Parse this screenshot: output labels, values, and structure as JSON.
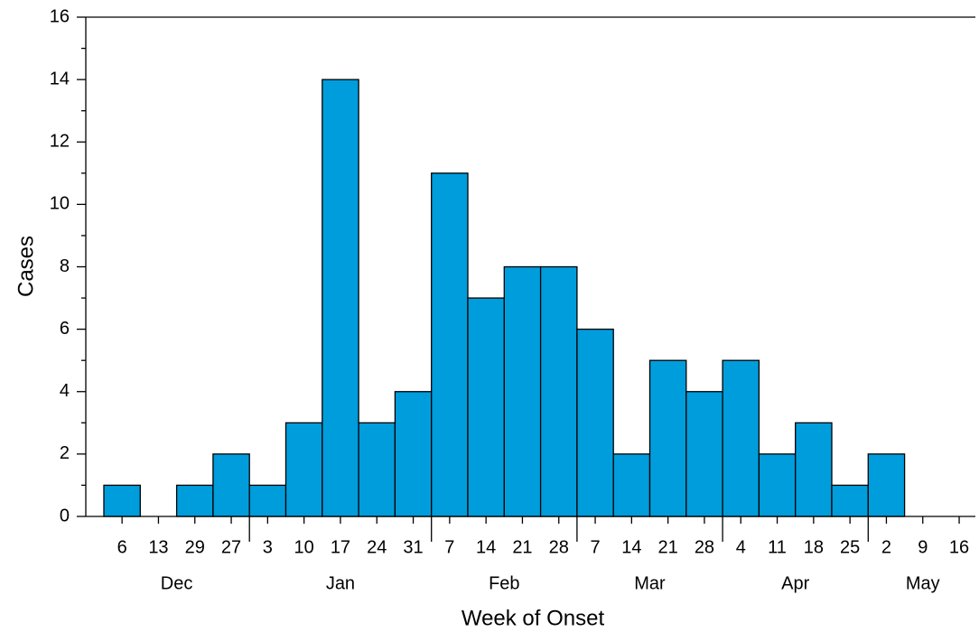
{
  "chart_data": {
    "type": "bar",
    "x_label": "Week of Onset",
    "y_label": "Cases",
    "color": "#009ddc",
    "groups": [
      {
        "name": "Dec",
        "categories": [
          "6",
          "13",
          "29",
          "27"
        ],
        "values": [
          1,
          0,
          1,
          2
        ]
      },
      {
        "name": "Jan",
        "categories": [
          "3",
          "10",
          "17",
          "24",
          "31"
        ],
        "values": [
          1,
          3,
          14,
          3,
          4
        ]
      },
      {
        "name": "Feb",
        "categories": [
          "7",
          "14",
          "21",
          "28"
        ],
        "values": [
          11,
          7,
          8,
          8
        ]
      },
      {
        "name": "Mar",
        "categories": [
          "7",
          "14",
          "21",
          "28"
        ],
        "values": [
          6,
          2,
          5,
          4
        ]
      },
      {
        "name": "Apr",
        "categories": [
          "4",
          "11",
          "18",
          "25"
        ],
        "values": [
          5,
          2,
          3,
          1
        ]
      },
      {
        "name": "May",
        "categories": [
          "2",
          "9",
          "16"
        ],
        "values": [
          2,
          0,
          0
        ]
      }
    ],
    "ylim": [
      0,
      16
    ],
    "yticks": [
      0,
      2,
      4,
      6,
      8,
      10,
      12,
      14,
      16
    ],
    "yminorticks": [
      1,
      3,
      5,
      7,
      9,
      11,
      13,
      15
    ]
  }
}
